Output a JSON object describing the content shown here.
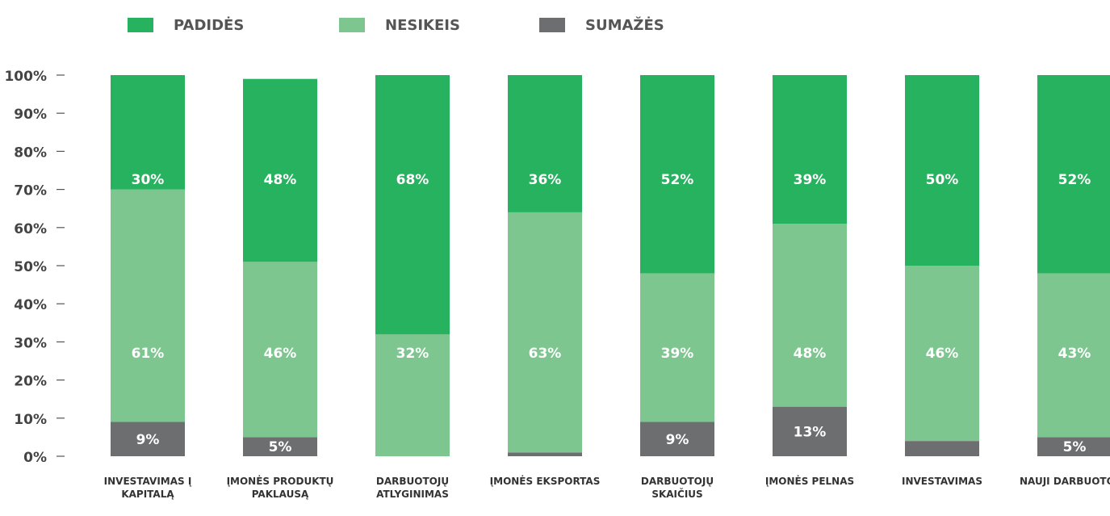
{
  "chart_data": {
    "type": "stacked_bar",
    "categories": [
      "INVESTAVIMAS Į KAPITALĄ",
      "ĮMONĖS PRODUKTŲ PAKLAUSĄ",
      "DARBUOTOJŲ ATLYGINIMAS",
      "ĮMONĖS EKSPORTAS",
      "DARBUOTOJŲ SKAIČIUS",
      "ĮMONĖS PELNAS",
      "INVESTAVIMAS",
      "NAUJI DARBUOTOJAI"
    ],
    "series": [
      {
        "name": "SUMAŽĖS",
        "color": "#6d6e70",
        "values": [
          9,
          5,
          0,
          1,
          9,
          13,
          4,
          5
        ],
        "value_labels": [
          "9%",
          "5%",
          null,
          null,
          "9%",
          "13%",
          null,
          "5%"
        ]
      },
      {
        "name": "NESIKEIS",
        "color": "#7dc68f",
        "values": [
          61,
          46,
          32,
          63,
          39,
          48,
          46,
          43
        ],
        "value_labels": [
          "61%",
          "46%",
          "32%",
          "63%",
          "39%",
          "48%",
          "46%",
          "43%"
        ]
      },
      {
        "name": "PADIDĖS",
        "color": "#27b25f",
        "values": [
          30,
          48,
          68,
          36,
          52,
          39,
          50,
          52
        ],
        "value_labels": [
          "30%",
          "48%",
          "68%",
          "36%",
          "52%",
          "39%",
          "50%",
          "52%"
        ]
      }
    ],
    "legend_order": [
      "PADIDĖS",
      "NESIKEIS",
      "SUMAŽĖS"
    ],
    "ylim": [
      0,
      100
    ],
    "yticks": [
      {
        "value": 0,
        "label": "0%"
      },
      {
        "value": 10,
        "label": "10%"
      },
      {
        "value": 20,
        "label": "20%"
      },
      {
        "value": 30,
        "label": "30%"
      },
      {
        "value": 40,
        "label": "40%"
      },
      {
        "value": 50,
        "label": "50%"
      },
      {
        "value": 60,
        "label": "60%"
      },
      {
        "value": 70,
        "label": "70%"
      },
      {
        "value": 80,
        "label": "80%"
      },
      {
        "value": 90,
        "label": "90%"
      },
      {
        "value": 100,
        "label": "100%"
      }
    ]
  }
}
